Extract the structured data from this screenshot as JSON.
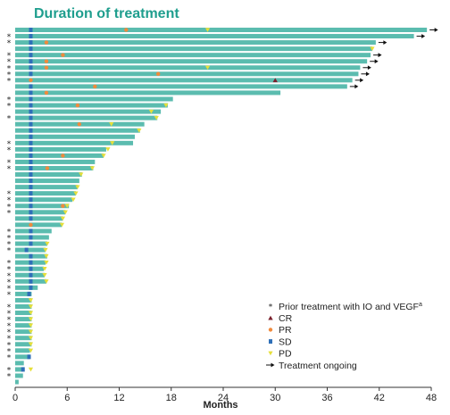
{
  "chart_data": {
    "type": "bar",
    "orientation": "horizontal",
    "title": "Duration of treatment",
    "xlabel": "Months",
    "xlim": [
      0,
      48
    ],
    "xticks": [
      0,
      6,
      12,
      18,
      24,
      30,
      36,
      42,
      48
    ],
    "colors": {
      "bar": "#5bbcaf",
      "title": "#1f9e8e",
      "CR": "#7a1f2b",
      "PR": "#f08a3c",
      "SD": "#2e6fb8",
      "PD": "#e6df3a",
      "ongoing": "#111111",
      "star": "#222222"
    },
    "legend": {
      "position": "bottom-right",
      "items": [
        {
          "key": "star",
          "label": "Prior treatment with IO and VEGF",
          "sup": "a"
        },
        {
          "key": "CR",
          "label": "CR"
        },
        {
          "key": "PR",
          "label": "PR"
        },
        {
          "key": "SD",
          "label": "SD"
        },
        {
          "key": "PD",
          "label": "PD"
        },
        {
          "key": "ongoing",
          "label": "Treatment ongoing"
        }
      ]
    },
    "patients": [
      {
        "duration": 47.5,
        "prior": false,
        "sd": 1.8,
        "pr": 12.8,
        "pd": 22.2,
        "ongoing": true
      },
      {
        "duration": 46.0,
        "prior": true,
        "sd": 1.8,
        "ongoing": true
      },
      {
        "duration": 41.6,
        "prior": true,
        "sd": 1.8,
        "pr": 3.6,
        "ongoing": true
      },
      {
        "duration": 41.2,
        "prior": false,
        "sd": 1.8,
        "pd": 41.2
      },
      {
        "duration": 41.0,
        "prior": true,
        "sd": 1.8,
        "pr": 5.5,
        "ongoing": true
      },
      {
        "duration": 40.6,
        "prior": true,
        "sd": 1.8,
        "pr": 3.6,
        "ongoing": true
      },
      {
        "duration": 39.8,
        "prior": true,
        "sd": 1.8,
        "pr": 3.6,
        "pd": 22.2,
        "ongoing": true
      },
      {
        "duration": 39.6,
        "prior": true,
        "sd": 1.8,
        "pr": 16.5,
        "ongoing": true
      },
      {
        "duration": 38.9,
        "prior": true,
        "pr": 1.8,
        "cr": 30.0,
        "ongoing": true
      },
      {
        "duration": 38.3,
        "prior": false,
        "sd": 1.8,
        "pr": 9.2,
        "ongoing": true
      },
      {
        "duration": 30.6,
        "prior": false,
        "sd": 1.8,
        "pr": 3.6
      },
      {
        "duration": 18.2,
        "prior": true,
        "sd": 1.8
      },
      {
        "duration": 17.6,
        "prior": true,
        "sd": 1.8,
        "pr": 7.2,
        "pd": 17.4
      },
      {
        "duration": 16.8,
        "prior": false,
        "sd": 1.8,
        "pd": 15.7
      },
      {
        "duration": 16.4,
        "prior": true,
        "sd": 1.8,
        "pd": 16.3
      },
      {
        "duration": 14.9,
        "prior": false,
        "sd": 1.8,
        "pr": 7.4,
        "pd": 11.1
      },
      {
        "duration": 14.4,
        "prior": false,
        "sd": 1.8,
        "pd": 14.3
      },
      {
        "duration": 13.8,
        "prior": false,
        "sd": 1.8
      },
      {
        "duration": 13.6,
        "prior": true,
        "sd": 1.8,
        "pd": 11.2
      },
      {
        "duration": 10.5,
        "prior": true,
        "sd": 1.8,
        "pd": 10.7
      },
      {
        "duration": 10.2,
        "prior": false,
        "sd": 1.8,
        "pr": 5.5,
        "pd": 10.2
      },
      {
        "duration": 9.2,
        "prior": true,
        "sd": 1.8
      },
      {
        "duration": 9.0,
        "prior": true,
        "sd": 1.8,
        "pr": 3.7,
        "pd": 8.9
      },
      {
        "duration": 7.7,
        "prior": false,
        "sd": 1.8,
        "pd": 7.6
      },
      {
        "duration": 7.4,
        "prior": false,
        "sd": 1.8
      },
      {
        "duration": 7.2,
        "prior": false,
        "sd": 1.8,
        "pd": 7.2
      },
      {
        "duration": 7.0,
        "prior": true,
        "sd": 1.8,
        "pd": 7.0
      },
      {
        "duration": 6.6,
        "prior": true,
        "sd": 1.8,
        "pd": 6.7
      },
      {
        "duration": 6.2,
        "prior": true,
        "sd": 1.8,
        "pr": 5.5,
        "pd": 6.0
      },
      {
        "duration": 5.8,
        "prior": true,
        "sd": 1.8,
        "pd": 5.8
      },
      {
        "duration": 5.5,
        "prior": false,
        "sd": 1.8,
        "pd": 5.5
      },
      {
        "duration": 5.4,
        "prior": false,
        "pr": 1.8,
        "pd": 5.4
      },
      {
        "duration": 4.2,
        "prior": true,
        "sd": 1.8
      },
      {
        "duration": 3.9,
        "prior": true,
        "sd": 1.8
      },
      {
        "duration": 3.7,
        "prior": true,
        "sd": 1.8,
        "pd": 3.7
      },
      {
        "duration": 3.5,
        "prior": true,
        "sd": 1.3,
        "pd": 3.5
      },
      {
        "duration": 3.7,
        "prior": false,
        "sd": 1.8,
        "pd": 3.6
      },
      {
        "duration": 3.5,
        "prior": true,
        "sd": 1.8,
        "pd": 3.6
      },
      {
        "duration": 3.3,
        "prior": true,
        "sd": 1.8,
        "pd": 3.4
      },
      {
        "duration": 3.4,
        "prior": true,
        "sd": 1.8,
        "pd": 3.4
      },
      {
        "duration": 3.6,
        "prior": true,
        "sd": 1.8,
        "pd": 3.6
      },
      {
        "duration": 2.6,
        "prior": true,
        "sd": 1.8
      },
      {
        "duration": 1.9,
        "prior": true,
        "sd": 1.6
      },
      {
        "duration": 1.9,
        "prior": false,
        "pd": 1.8
      },
      {
        "duration": 1.9,
        "prior": true,
        "pd": 1.8
      },
      {
        "duration": 1.9,
        "prior": true,
        "pd": 1.8
      },
      {
        "duration": 1.9,
        "prior": true,
        "pd": 1.8
      },
      {
        "duration": 1.9,
        "prior": true,
        "pd": 1.8
      },
      {
        "duration": 1.9,
        "prior": true,
        "pd": 1.8
      },
      {
        "duration": 1.9,
        "prior": true,
        "pd": 1.8
      },
      {
        "duration": 1.9,
        "prior": true,
        "pd": 1.8
      },
      {
        "duration": 1.7,
        "prior": true,
        "pd": 1.8
      },
      {
        "duration": 1.7,
        "prior": true,
        "sd": 1.6
      },
      {
        "duration": 1.0,
        "prior": false
      },
      {
        "duration": 1.0,
        "prior": true,
        "sd": 0.9,
        "pd": 1.8
      },
      {
        "duration": 0.9,
        "prior": true
      },
      {
        "duration": 0.4,
        "prior": false
      }
    ]
  }
}
